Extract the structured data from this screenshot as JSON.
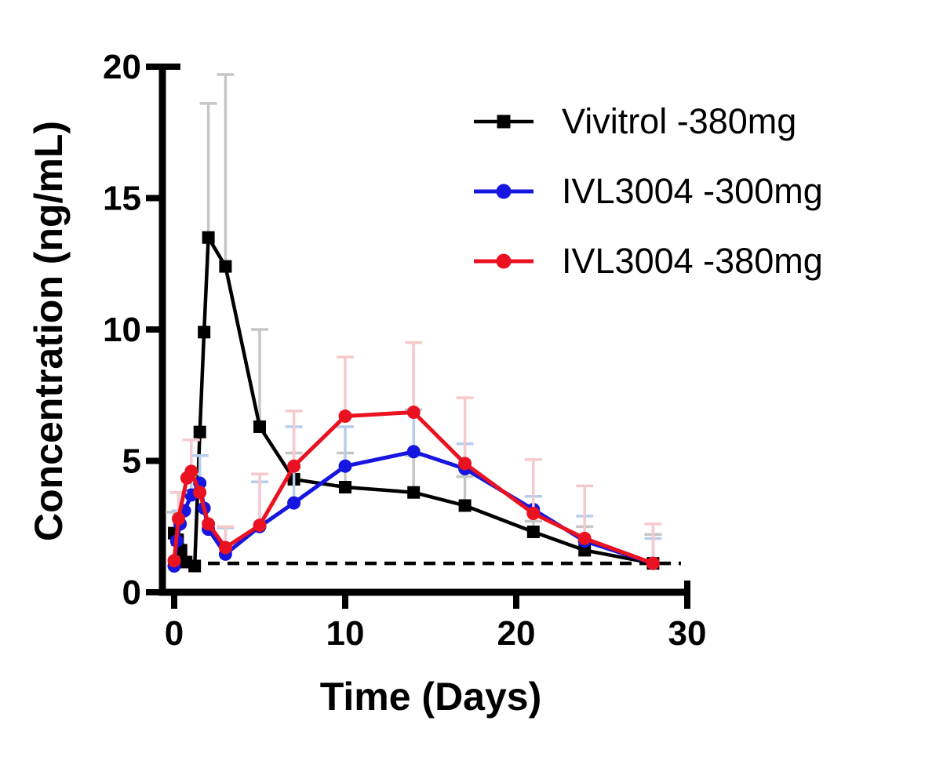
{
  "figure_name": "pharmacokinetic-concentration-time-plot",
  "chart_data": {
    "type": "line",
    "title": "",
    "xlabel": "Time (Days)",
    "ylabel": "Concentration (ng/mL)",
    "xlim": [
      0,
      30
    ],
    "ylim": [
      0,
      20
    ],
    "x_ticks": [
      "0",
      "10",
      "20",
      "30"
    ],
    "y_ticks": [
      "0",
      "5",
      "10",
      "15",
      "20"
    ],
    "grid": false,
    "legend_position": "upper-right-inside",
    "error_bars": "sd-upper-only",
    "lloq_line": {
      "style": "dashed",
      "color": "#000000",
      "value": 1.1
    },
    "point_format": "[day, concentration_ng_per_mL, sd_upper]",
    "series": [
      {
        "name": "Vivitrol -380mg",
        "color": "#000000",
        "error_color": "#c6c6c6",
        "marker": "square",
        "points": [
          [
            0,
            2.25,
            0.8
          ],
          [
            0.2,
            2.0,
            0
          ],
          [
            0.4,
            1.6,
            0
          ],
          [
            0.7,
            1.15,
            0
          ],
          [
            1.2,
            1.0,
            0
          ],
          [
            1.5,
            6.1,
            0
          ],
          [
            1.75,
            9.9,
            0
          ],
          [
            2,
            13.5,
            5.1
          ],
          [
            3,
            12.4,
            7.3
          ],
          [
            5,
            6.3,
            3.7
          ],
          [
            7,
            4.3,
            1.0
          ],
          [
            10,
            4.0,
            1.3
          ],
          [
            14,
            3.8,
            1.4
          ],
          [
            17,
            3.3,
            1.1
          ],
          [
            21,
            2.3,
            0.4
          ],
          [
            24,
            1.6,
            0.9
          ],
          [
            28,
            1.1,
            1.1
          ]
        ]
      },
      {
        "name": "IVL3004 -300mg",
        "color": "#1616e0",
        "error_color": "#b7cdec",
        "marker": "circle",
        "points": [
          [
            0,
            1.0,
            0
          ],
          [
            0.15,
            1.95,
            0
          ],
          [
            0.35,
            2.6,
            0.5
          ],
          [
            0.6,
            3.1,
            0
          ],
          [
            1,
            3.7,
            0.8
          ],
          [
            1.5,
            4.15,
            1.05
          ],
          [
            1.75,
            3.2,
            0
          ],
          [
            2,
            2.4,
            0
          ],
          [
            3,
            1.45,
            1.0
          ],
          [
            5,
            2.5,
            1.7
          ],
          [
            7,
            3.4,
            2.9
          ],
          [
            10,
            4.8,
            1.5
          ],
          [
            14,
            5.35,
            1.6
          ],
          [
            17,
            4.7,
            0.95
          ],
          [
            21,
            3.15,
            0.5
          ],
          [
            24,
            1.95,
            0.95
          ],
          [
            28,
            1.1,
            0.95
          ]
        ]
      },
      {
        "name": "IVL3004 -380mg",
        "color": "#ea1220",
        "error_color": "#f6c9cd",
        "marker": "circle",
        "points": [
          [
            0,
            1.2,
            0
          ],
          [
            0.25,
            2.8,
            1.0
          ],
          [
            0.75,
            4.35,
            0
          ],
          [
            1,
            4.6,
            1.2
          ],
          [
            1.5,
            3.8,
            0
          ],
          [
            2,
            2.6,
            0
          ],
          [
            3,
            1.7,
            0.8
          ],
          [
            5,
            2.55,
            1.95
          ],
          [
            7,
            4.8,
            2.1
          ],
          [
            10,
            6.7,
            2.25
          ],
          [
            14,
            6.85,
            2.65
          ],
          [
            17,
            4.9,
            2.5
          ],
          [
            21,
            3.0,
            2.05
          ],
          [
            24,
            2.05,
            2.0
          ],
          [
            28,
            1.1,
            1.5
          ]
        ]
      }
    ]
  }
}
